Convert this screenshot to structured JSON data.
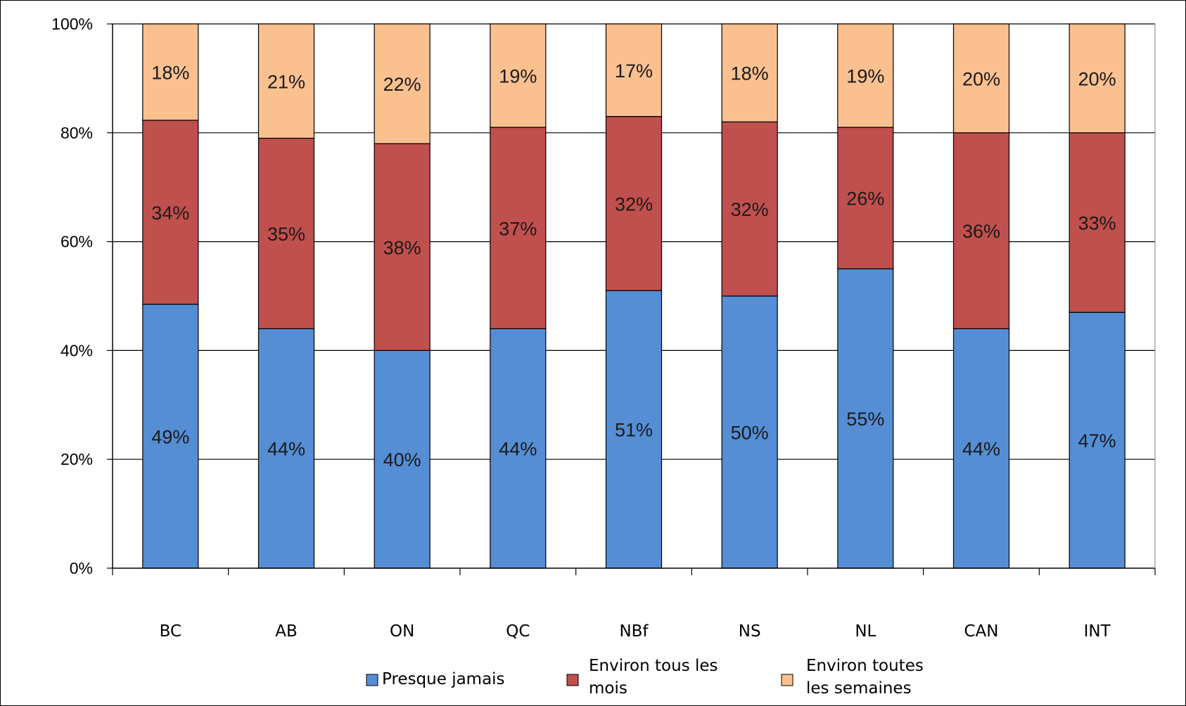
{
  "chart_data": {
    "type": "bar",
    "stacked": true,
    "percent_stacked": true,
    "categories": [
      "BC",
      "AB",
      "ON",
      "QC",
      "NBf",
      "NS",
      "NL",
      "CAN",
      "INT"
    ],
    "series": [
      {
        "name": "Presque jamais",
        "color": "#558ED5",
        "values": [
          48.5,
          44,
          40,
          44,
          51,
          50,
          55,
          44,
          47
        ],
        "labels": [
          "49%",
          "44%",
          "40%",
          "44%",
          "51%",
          "50%",
          "55%",
          "44%",
          "47%"
        ]
      },
      {
        "name": "Environ tous les mois",
        "color": "#C0504D",
        "values": [
          33.8,
          35,
          38,
          37,
          32,
          32,
          26,
          36,
          33
        ],
        "labels": [
          "34%",
          "35%",
          "38%",
          "37%",
          "32%",
          "32%",
          "26%",
          "36%",
          "33%"
        ]
      },
      {
        "name": "Environ toutes les semaines",
        "color": "#FAC090",
        "values": [
          17.7,
          21,
          22,
          19,
          17,
          18,
          19,
          20,
          20
        ],
        "labels": [
          "18%",
          "21%",
          "22%",
          "19%",
          "17%",
          "18%",
          "19%",
          "20%",
          "20%"
        ]
      }
    ],
    "yticks": [
      "0%",
      "20%",
      "40%",
      "60%",
      "80%",
      "100%"
    ],
    "ylim": [
      0,
      100
    ],
    "grid": true,
    "legend_position": "bottom",
    "legend_lines": [
      [
        "Presque jamais"
      ],
      [
        "Environ tous les",
        "mois"
      ],
      [
        "Environ toutes",
        "les semaines"
      ]
    ]
  }
}
